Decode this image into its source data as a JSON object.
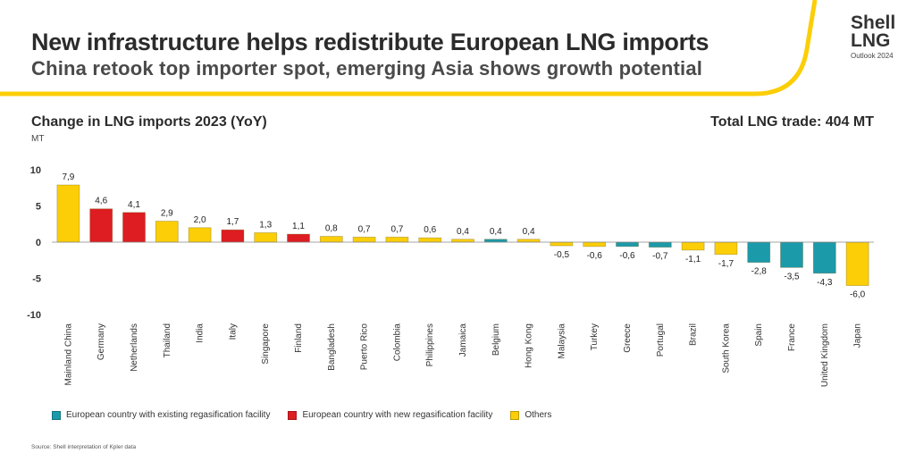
{
  "header": {
    "title": "New infrastructure helps redistribute European LNG imports",
    "subtitle": "China retook top importer spot, emerging Asia shows growth potential"
  },
  "brand": {
    "line1": "Shell",
    "line2": "LNG",
    "line3": "Outlook 2024"
  },
  "colors": {
    "existing": "#1b9aaa",
    "new": "#dd1d21",
    "others": "#fbce07",
    "accent": "#fbce07"
  },
  "chart_data": {
    "type": "bar",
    "title": "Change in LNG imports 2023 (YoY)",
    "ylabel": "MT",
    "annotation": "Total LNG trade: 404 MT",
    "ylim": [
      -10,
      10
    ],
    "yticks": [
      "10",
      "5",
      "0",
      "-5",
      "-10"
    ],
    "grid": false,
    "legend_position": "bottom-left",
    "categories": [
      "Mainland China",
      "Germany",
      "Netherlands",
      "Thailand",
      "India",
      "Italy",
      "Singapore",
      "Finland",
      "Bangladesh",
      "Puerto Rico",
      "Colombia",
      "Philippines",
      "Jamaica",
      "Belgium",
      "Hong Kong",
      "Malaysia",
      "Turkey",
      "Greece",
      "Portugal",
      "Brazil",
      "South Korea",
      "Spain",
      "France",
      "United Kingdom",
      "Japan"
    ],
    "values": [
      7.9,
      4.6,
      4.1,
      2.9,
      2.0,
      1.7,
      1.3,
      1.1,
      0.8,
      0.7,
      0.7,
      0.6,
      0.4,
      0.4,
      0.4,
      -0.5,
      -0.6,
      -0.6,
      -0.7,
      -1.1,
      -1.7,
      -2.8,
      -3.5,
      -4.3,
      -6.0
    ],
    "labels": [
      "7,9",
      "4,6",
      "4,1",
      "2,9",
      "2,0",
      "1,7",
      "1,3",
      "1,1",
      "0,8",
      "0,7",
      "0,7",
      "0,6",
      "0,4",
      "0,4",
      "0,4",
      "-0,5",
      "-0,6",
      "-0,6",
      "-0,7",
      "-1,1",
      "-1,7",
      "-2,8",
      "-3,5",
      "-4,3",
      "-6,0"
    ],
    "groups": [
      "others",
      "new",
      "new",
      "others",
      "others",
      "new",
      "others",
      "new",
      "others",
      "others",
      "others",
      "others",
      "others",
      "existing",
      "others",
      "others",
      "others",
      "existing",
      "existing",
      "others",
      "others",
      "existing",
      "existing",
      "existing",
      "others"
    ],
    "legend": [
      {
        "key": "existing",
        "label": "European country with existing regasification facility"
      },
      {
        "key": "new",
        "label": "European country with new regasification facility"
      },
      {
        "key": "others",
        "label": "Others"
      }
    ]
  },
  "source": "Source: Shell interpretation of Kpler data"
}
